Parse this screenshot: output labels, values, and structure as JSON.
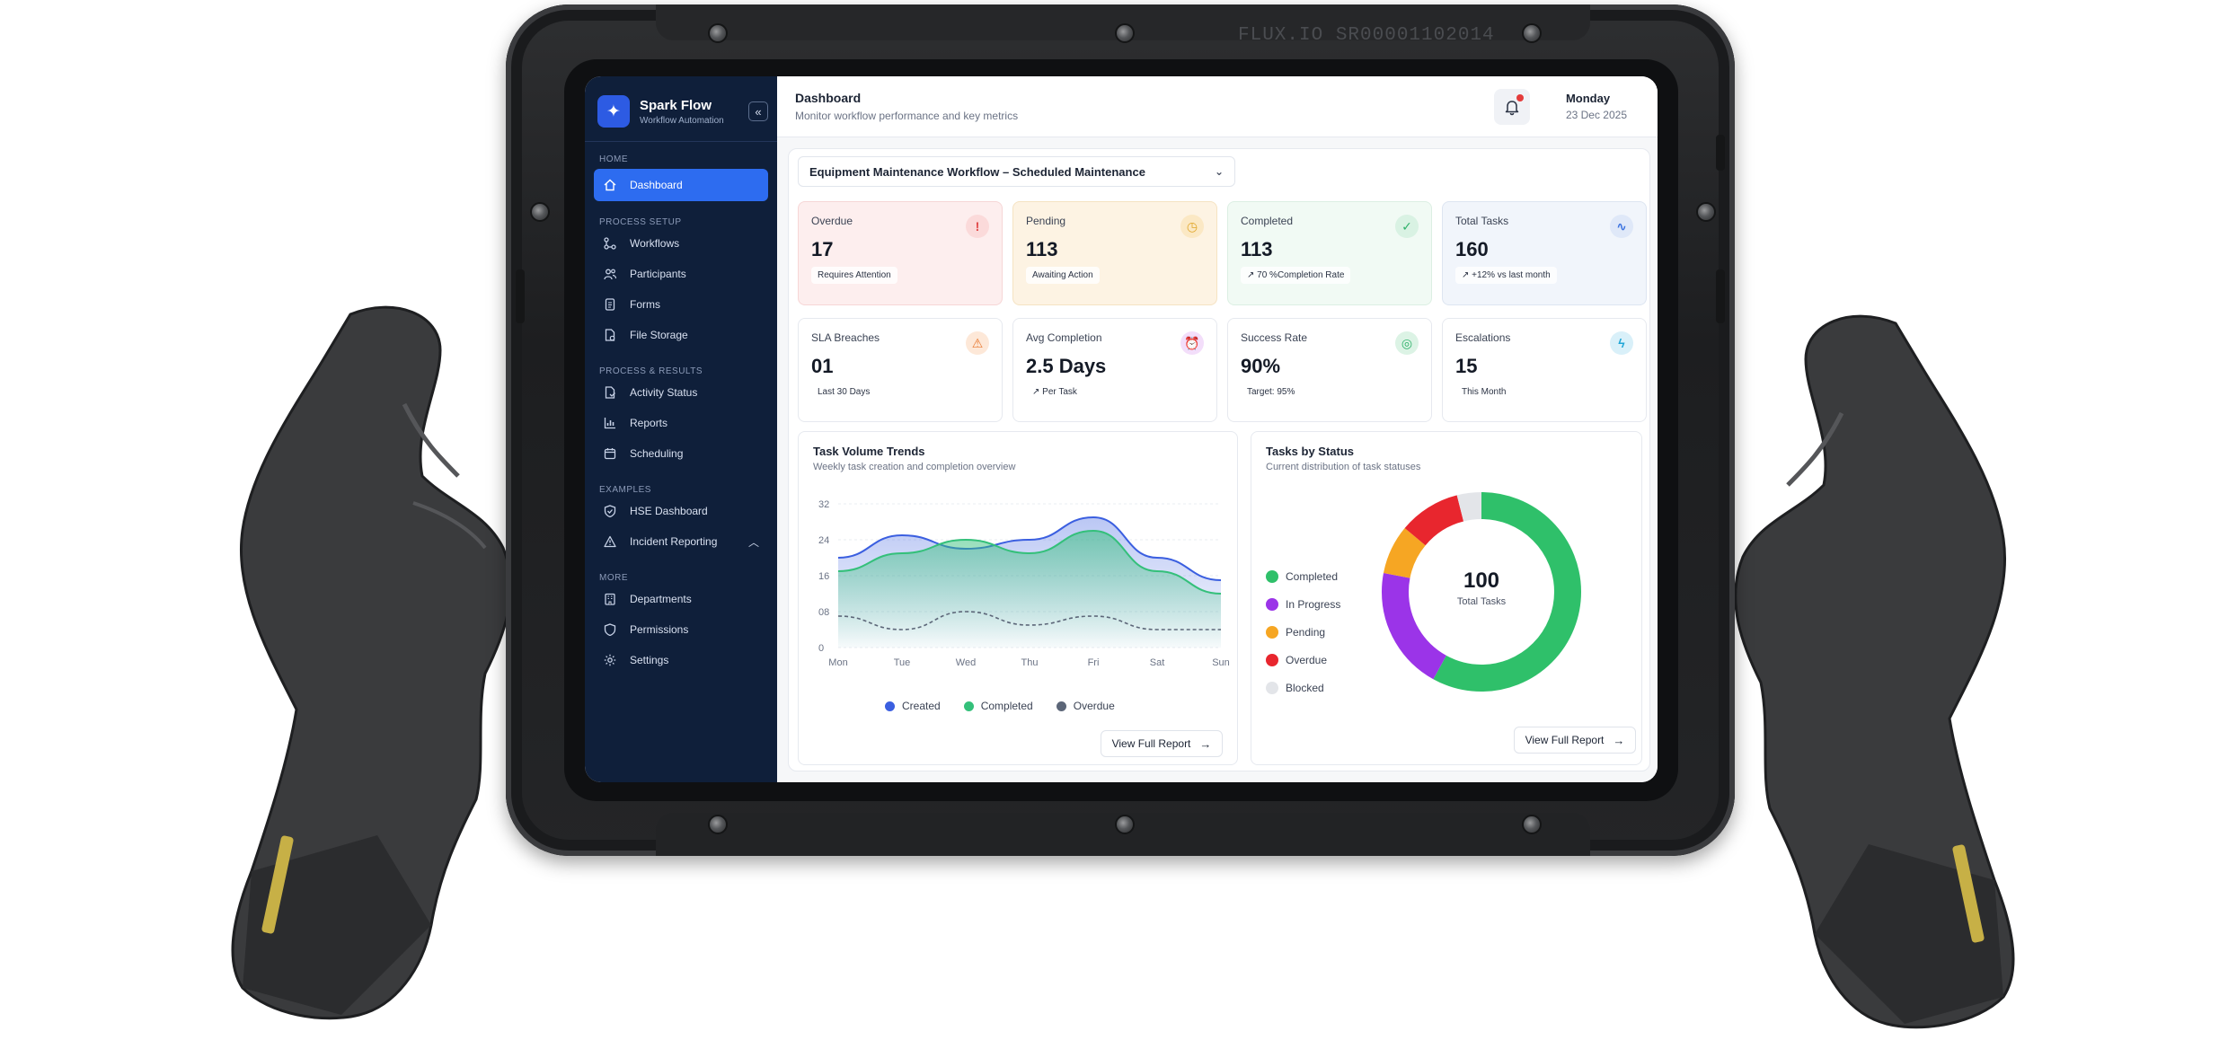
{
  "device": {
    "serial": "FLUX.IO  SR00001102014"
  },
  "sidebar": {
    "brand_name": "Spark Flow",
    "brand_sub": "Workflow Automation",
    "sections": [
      {
        "label": "HOME",
        "items": [
          {
            "label": "Dashboard",
            "icon": "home-icon",
            "active": true
          }
        ]
      },
      {
        "label": "PROCESS SETUP",
        "items": [
          {
            "label": "Workflows",
            "icon": "workflow-icon"
          },
          {
            "label": "Participants",
            "icon": "users-icon"
          },
          {
            "label": "Forms",
            "icon": "form-icon"
          },
          {
            "label": "File Storage",
            "icon": "file-storage-icon"
          }
        ]
      },
      {
        "label": "PROCESS & RESULTS",
        "items": [
          {
            "label": "Activity Status",
            "icon": "activity-icon"
          },
          {
            "label": "Reports",
            "icon": "bar-chart-icon"
          },
          {
            "label": "Scheduling",
            "icon": "calendar-icon"
          }
        ]
      },
      {
        "label": "EXAMPLES",
        "items": [
          {
            "label": "HSE Dashboard",
            "icon": "shield-check-icon"
          },
          {
            "label": "Incident Reporting",
            "icon": "warning-icon"
          }
        ]
      },
      {
        "label": "MORE",
        "items": [
          {
            "label": "Departments",
            "icon": "building-icon"
          },
          {
            "label": "Permissions",
            "icon": "shield-icon"
          },
          {
            "label": "Settings",
            "icon": "gear-icon"
          }
        ]
      }
    ]
  },
  "header": {
    "title": "Dashboard",
    "subtitle": "Monitor workflow performance and key metrics",
    "day": "Monday",
    "date": "23 Dec 2025"
  },
  "workflow_select": {
    "value": "Equipment Maintenance Workflow – Scheduled Maintenance"
  },
  "cards": [
    {
      "label": "Overdue",
      "value": "17",
      "chip": "Requires Attention",
      "icon": "alert-circle-icon",
      "bg": "#fdeeee",
      "icon_color": "#e04848",
      "icon_bg": "#fbdada",
      "border": "#f6d6d6"
    },
    {
      "label": "Pending",
      "value": "113",
      "chip": "Awaiting Action",
      "icon": "clock-icon",
      "bg": "#fdf3e3",
      "icon_color": "#e0a628",
      "icon_bg": "#fbe8c4",
      "border": "#f5e3c2"
    },
    {
      "label": "Completed",
      "value": "113",
      "chip": "↗ 70 %Completion Rate",
      "icon": "check-circle-icon",
      "bg": "#f1faf4",
      "icon_color": "#2fb26b",
      "icon_bg": "#d9f2e3",
      "border": "#dcefe3"
    },
    {
      "label": "Total Tasks",
      "value": "160",
      "chip": "↗ +12% vs last month",
      "icon": "pulse-icon",
      "bg": "#f1f5fb",
      "icon_color": "#3d74e0",
      "icon_bg": "#dfe8f8",
      "border": "#dde5f1"
    },
    {
      "label": "SLA Breaches",
      "value": "01",
      "chip": "Last 30 Days",
      "icon": "warning-triangle-icon",
      "bg": "#ffffff",
      "icon_color": "#e8772e",
      "icon_bg": "#fde8d8",
      "border": "#e6e9ef"
    },
    {
      "label": "Avg Completion",
      "value": "2.5 Days",
      "chip": "↗ Per Task",
      "icon": "alarm-clock-icon",
      "bg": "#ffffff",
      "icon_color": "#b03ad8",
      "icon_bg": "#f3defa",
      "border": "#e6e9ef"
    },
    {
      "label": "Success Rate",
      "value": "90%",
      "chip": "Target: 95%",
      "icon": "target-icon",
      "bg": "#ffffff",
      "icon_color": "#2fb26b",
      "icon_bg": "#dcf3e5",
      "border": "#e6e9ef"
    },
    {
      "label": "Escalations",
      "value": "15",
      "chip": "This Month",
      "icon": "lightning-icon",
      "bg": "#ffffff",
      "icon_color": "#1fa6d6",
      "icon_bg": "#d9f0f9",
      "border": "#e6e9ef"
    }
  ],
  "trends": {
    "title": "Task Volume Trends",
    "subtitle": "Weekly task creation and completion overview",
    "button": "View Full Report"
  },
  "status": {
    "title": "Tasks by Status",
    "subtitle": "Current distribution of task statuses",
    "center_value": "100",
    "center_label": "Total Tasks",
    "button": "View Full Report"
  },
  "chart_data": [
    {
      "type": "area",
      "title": "Task Volume Trends",
      "categories": [
        "Mon",
        "Tue",
        "Wed",
        "Thu",
        "Fri",
        "Sat",
        "Sun"
      ],
      "y_ticks": [
        "32",
        "24",
        "16",
        "08",
        "0"
      ],
      "ylim": [
        0,
        32
      ],
      "grid": true,
      "legend": "bottom",
      "series": [
        {
          "name": "Created",
          "values": [
            20,
            25,
            22,
            24,
            29,
            20,
            15
          ],
          "color": "#3b5fe0"
        },
        {
          "name": "Completed",
          "values": [
            17,
            21,
            24,
            21,
            26,
            17,
            12
          ],
          "color": "#34c07a"
        },
        {
          "name": "Overdue",
          "values": [
            7,
            4,
            8,
            5,
            7,
            4,
            4
          ],
          "color": "#5c6678"
        }
      ]
    },
    {
      "type": "pie",
      "title": "Tasks by Status",
      "legend": "left",
      "series": [
        {
          "name": "Completed",
          "value": 58,
          "color": "#2fc06a"
        },
        {
          "name": "In Progress",
          "value": 20,
          "color": "#9b34e8"
        },
        {
          "name": "Pending",
          "value": 8,
          "color": "#f6a623"
        },
        {
          "name": "Overdue",
          "value": 10,
          "color": "#e8262e"
        },
        {
          "name": "Blocked",
          "value": 4,
          "color": "#e3e5e9"
        }
      ]
    }
  ]
}
